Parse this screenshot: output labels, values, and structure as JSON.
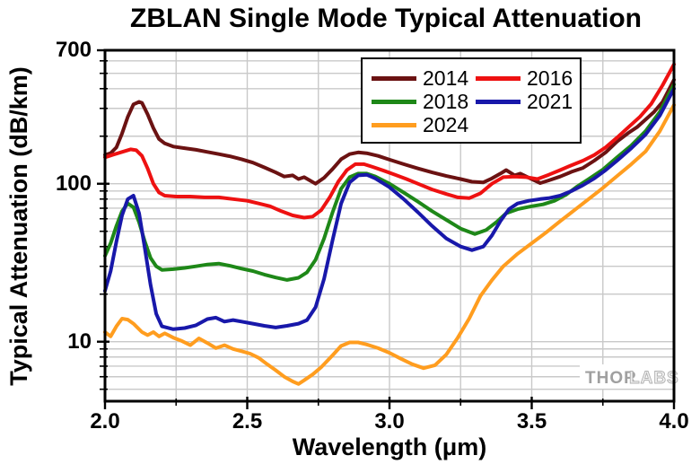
{
  "watermark": {
    "thor": "THOR",
    "labs": "LABS"
  },
  "chart_data": {
    "type": "line",
    "title": "ZBLAN Single Mode Typical Attenuation",
    "xlabel": "Wavelength (μm)",
    "ylabel": "Typical Attenuation (dB/km)",
    "grid": true,
    "grid_color": "#c9c9c9",
    "x_axis": {
      "min": 2.0,
      "max": 4.0,
      "major_ticks": [
        2.0,
        2.5,
        3.0,
        3.5,
        4.0
      ],
      "tick_labels": [
        "2.0",
        "2.5",
        "3.0",
        "3.5",
        "4.0"
      ],
      "minor_ticks": [
        2.25,
        2.75,
        3.25,
        3.75
      ],
      "grid_values": [
        2.25,
        2.5,
        2.75,
        3.0,
        3.25,
        3.5,
        3.75
      ]
    },
    "y_axis": {
      "scale": "log",
      "min": 4.2,
      "max": 700,
      "major_ticks": [
        700,
        100,
        10
      ],
      "tick_labels": [
        "700",
        "100",
        "10"
      ],
      "grid_values": [
        600,
        500,
        400,
        300,
        200,
        100,
        90,
        80,
        70,
        60,
        50,
        40,
        30,
        20,
        10,
        9,
        8,
        7,
        6,
        5
      ]
    },
    "legend": {
      "position": "top-center-inside",
      "entries": [
        "2014",
        "2016",
        "2018",
        "2021",
        "2024"
      ]
    },
    "series": [
      {
        "name": "2014",
        "color": "#6b1212",
        "points": [
          [
            2.0,
            152
          ],
          [
            2.02,
            156
          ],
          [
            2.04,
            170
          ],
          [
            2.06,
            208
          ],
          [
            2.08,
            265
          ],
          [
            2.1,
            318
          ],
          [
            2.12,
            330
          ],
          [
            2.13,
            325
          ],
          [
            2.15,
            275
          ],
          [
            2.17,
            225
          ],
          [
            2.19,
            192
          ],
          [
            2.21,
            180
          ],
          [
            2.24,
            172
          ],
          [
            2.28,
            168
          ],
          [
            2.32,
            164
          ],
          [
            2.36,
            159
          ],
          [
            2.4,
            154
          ],
          [
            2.44,
            149
          ],
          [
            2.48,
            143
          ],
          [
            2.52,
            136
          ],
          [
            2.56,
            127
          ],
          [
            2.6,
            118
          ],
          [
            2.63,
            111
          ],
          [
            2.66,
            113
          ],
          [
            2.68,
            107
          ],
          [
            2.7,
            110
          ],
          [
            2.72,
            105
          ],
          [
            2.74,
            100
          ],
          [
            2.77,
            109
          ],
          [
            2.8,
            124
          ],
          [
            2.83,
            143
          ],
          [
            2.86,
            154
          ],
          [
            2.89,
            158
          ],
          [
            2.92,
            156
          ],
          [
            2.96,
            150
          ],
          [
            3.0,
            142
          ],
          [
            3.05,
            133
          ],
          [
            3.1,
            125
          ],
          [
            3.15,
            118
          ],
          [
            3.2,
            112
          ],
          [
            3.25,
            107
          ],
          [
            3.29,
            103
          ],
          [
            3.33,
            102
          ],
          [
            3.36,
            108
          ],
          [
            3.39,
            116
          ],
          [
            3.41,
            122
          ],
          [
            3.44,
            113
          ],
          [
            3.46,
            116
          ],
          [
            3.49,
            109
          ],
          [
            3.53,
            101
          ],
          [
            3.56,
            105
          ],
          [
            3.6,
            111
          ],
          [
            3.64,
            119
          ],
          [
            3.68,
            126
          ],
          [
            3.72,
            140
          ],
          [
            3.76,
            158
          ],
          [
            3.8,
            185
          ],
          [
            3.84,
            210
          ],
          [
            3.87,
            228
          ],
          [
            3.9,
            255
          ],
          [
            3.93,
            285
          ],
          [
            3.96,
            330
          ],
          [
            4.0,
            455
          ]
        ]
      },
      {
        "name": "2016",
        "color": "#ee1111",
        "points": [
          [
            2.0,
            147
          ],
          [
            2.03,
            153
          ],
          [
            2.06,
            159
          ],
          [
            2.09,
            165
          ],
          [
            2.11,
            163
          ],
          [
            2.13,
            150
          ],
          [
            2.15,
            125
          ],
          [
            2.17,
            100
          ],
          [
            2.19,
            88
          ],
          [
            2.21,
            84
          ],
          [
            2.25,
            83
          ],
          [
            2.3,
            83
          ],
          [
            2.35,
            82
          ],
          [
            2.4,
            82
          ],
          [
            2.45,
            80
          ],
          [
            2.5,
            78
          ],
          [
            2.54,
            75
          ],
          [
            2.58,
            72
          ],
          [
            2.62,
            67
          ],
          [
            2.66,
            63
          ],
          [
            2.7,
            61
          ],
          [
            2.73,
            62
          ],
          [
            2.76,
            68
          ],
          [
            2.79,
            82
          ],
          [
            2.82,
            103
          ],
          [
            2.85,
            122
          ],
          [
            2.88,
            133
          ],
          [
            2.91,
            133
          ],
          [
            2.94,
            128
          ],
          [
            2.98,
            121
          ],
          [
            3.02,
            114
          ],
          [
            3.06,
            107
          ],
          [
            3.1,
            100
          ],
          [
            3.15,
            92
          ],
          [
            3.2,
            86
          ],
          [
            3.24,
            82
          ],
          [
            3.28,
            81
          ],
          [
            3.32,
            87
          ],
          [
            3.36,
            100
          ],
          [
            3.4,
            110
          ],
          [
            3.44,
            111
          ],
          [
            3.48,
            110
          ],
          [
            3.52,
            107
          ],
          [
            3.56,
            114
          ],
          [
            3.6,
            122
          ],
          [
            3.64,
            131
          ],
          [
            3.68,
            140
          ],
          [
            3.72,
            152
          ],
          [
            3.76,
            170
          ],
          [
            3.8,
            196
          ],
          [
            3.84,
            228
          ],
          [
            3.88,
            265
          ],
          [
            3.92,
            320
          ],
          [
            3.96,
            420
          ],
          [
            4.0,
            570
          ]
        ]
      },
      {
        "name": "2018",
        "color": "#1e8818",
        "points": [
          [
            2.0,
            35
          ],
          [
            2.02,
            42
          ],
          [
            2.04,
            54
          ],
          [
            2.06,
            67
          ],
          [
            2.08,
            75
          ],
          [
            2.1,
            71
          ],
          [
            2.12,
            57
          ],
          [
            2.14,
            43
          ],
          [
            2.16,
            34
          ],
          [
            2.18,
            30
          ],
          [
            2.2,
            28.5
          ],
          [
            2.24,
            28.8
          ],
          [
            2.28,
            29.3
          ],
          [
            2.32,
            30
          ],
          [
            2.36,
            30.8
          ],
          [
            2.4,
            31.2
          ],
          [
            2.44,
            30.2
          ],
          [
            2.48,
            29
          ],
          [
            2.52,
            28
          ],
          [
            2.56,
            26.6
          ],
          [
            2.6,
            25.5
          ],
          [
            2.64,
            24.6
          ],
          [
            2.68,
            25.4
          ],
          [
            2.71,
            27.5
          ],
          [
            2.74,
            33
          ],
          [
            2.77,
            45
          ],
          [
            2.8,
            66
          ],
          [
            2.83,
            93
          ],
          [
            2.86,
            110
          ],
          [
            2.89,
            116
          ],
          [
            2.92,
            116
          ],
          [
            2.95,
            111
          ],
          [
            3.0,
            100
          ],
          [
            3.05,
            88
          ],
          [
            3.1,
            77
          ],
          [
            3.15,
            67
          ],
          [
            3.2,
            59
          ],
          [
            3.25,
            52
          ],
          [
            3.3,
            48
          ],
          [
            3.34,
            51
          ],
          [
            3.38,
            58
          ],
          [
            3.41,
            65
          ],
          [
            3.45,
            69
          ],
          [
            3.5,
            72
          ],
          [
            3.54,
            74
          ],
          [
            3.58,
            78
          ],
          [
            3.62,
            85
          ],
          [
            3.66,
            96
          ],
          [
            3.7,
            107
          ],
          [
            3.75,
            123
          ],
          [
            3.8,
            147
          ],
          [
            3.85,
            175
          ],
          [
            3.9,
            215
          ],
          [
            3.95,
            285
          ],
          [
            4.0,
            425
          ]
        ]
      },
      {
        "name": "2021",
        "color": "#1818aa",
        "points": [
          [
            2.0,
            21
          ],
          [
            2.02,
            28
          ],
          [
            2.04,
            43
          ],
          [
            2.06,
            63
          ],
          [
            2.08,
            80
          ],
          [
            2.1,
            84
          ],
          [
            2.12,
            65
          ],
          [
            2.14,
            39
          ],
          [
            2.16,
            23
          ],
          [
            2.18,
            15
          ],
          [
            2.2,
            12.5
          ],
          [
            2.24,
            12
          ],
          [
            2.28,
            12.2
          ],
          [
            2.32,
            12.7
          ],
          [
            2.36,
            13.9
          ],
          [
            2.39,
            14.2
          ],
          [
            2.42,
            13.4
          ],
          [
            2.45,
            13.7
          ],
          [
            2.48,
            13.4
          ],
          [
            2.52,
            13
          ],
          [
            2.56,
            12.6
          ],
          [
            2.6,
            12.3
          ],
          [
            2.64,
            12.6
          ],
          [
            2.68,
            13
          ],
          [
            2.71,
            13.7
          ],
          [
            2.74,
            16.5
          ],
          [
            2.77,
            25
          ],
          [
            2.8,
            44
          ],
          [
            2.83,
            75
          ],
          [
            2.86,
            102
          ],
          [
            2.89,
            113
          ],
          [
            2.92,
            114
          ],
          [
            2.95,
            108
          ],
          [
            3.0,
            95
          ],
          [
            3.05,
            80
          ],
          [
            3.1,
            66
          ],
          [
            3.15,
            54
          ],
          [
            3.2,
            45
          ],
          [
            3.25,
            40
          ],
          [
            3.29,
            38
          ],
          [
            3.33,
            40
          ],
          [
            3.36,
            47
          ],
          [
            3.39,
            58
          ],
          [
            3.42,
            69
          ],
          [
            3.45,
            75
          ],
          [
            3.49,
            78
          ],
          [
            3.53,
            80
          ],
          [
            3.56,
            81
          ],
          [
            3.6,
            84
          ],
          [
            3.64,
            90
          ],
          [
            3.68,
            98
          ],
          [
            3.72,
            108
          ],
          [
            3.76,
            122
          ],
          [
            3.8,
            140
          ],
          [
            3.85,
            168
          ],
          [
            3.9,
            205
          ],
          [
            3.95,
            270
          ],
          [
            4.0,
            400
          ]
        ]
      },
      {
        "name": "2024",
        "color": "#ff9d1f",
        "points": [
          [
            2.0,
            11.5
          ],
          [
            2.02,
            10.8
          ],
          [
            2.04,
            12.5
          ],
          [
            2.06,
            14
          ],
          [
            2.08,
            13.8
          ],
          [
            2.1,
            13
          ],
          [
            2.13,
            11.5
          ],
          [
            2.15,
            11
          ],
          [
            2.17,
            11.5
          ],
          [
            2.19,
            10.8
          ],
          [
            2.21,
            11.3
          ],
          [
            2.24,
            10.6
          ],
          [
            2.27,
            10.1
          ],
          [
            2.3,
            9.5
          ],
          [
            2.33,
            10.5
          ],
          [
            2.36,
            9.8
          ],
          [
            2.39,
            9.1
          ],
          [
            2.42,
            9.5
          ],
          [
            2.45,
            9
          ],
          [
            2.48,
            8.7
          ],
          [
            2.51,
            8.4
          ],
          [
            2.54,
            7.9
          ],
          [
            2.57,
            7.2
          ],
          [
            2.6,
            6.6
          ],
          [
            2.63,
            6
          ],
          [
            2.66,
            5.6
          ],
          [
            2.68,
            5.4
          ],
          [
            2.7,
            5.7
          ],
          [
            2.73,
            6.2
          ],
          [
            2.76,
            6.9
          ],
          [
            2.8,
            8.2
          ],
          [
            2.83,
            9.4
          ],
          [
            2.86,
            9.9
          ],
          [
            2.89,
            9.9
          ],
          [
            2.92,
            9.6
          ],
          [
            2.96,
            9.1
          ],
          [
            3.0,
            8.5
          ],
          [
            3.04,
            7.8
          ],
          [
            3.08,
            7.2
          ],
          [
            3.12,
            6.8
          ],
          [
            3.16,
            7.1
          ],
          [
            3.2,
            8.3
          ],
          [
            3.24,
            10.6
          ],
          [
            3.28,
            14
          ],
          [
            3.32,
            19.5
          ],
          [
            3.36,
            24.5
          ],
          [
            3.4,
            30
          ],
          [
            3.45,
            36
          ],
          [
            3.5,
            42
          ],
          [
            3.55,
            49
          ],
          [
            3.6,
            58
          ],
          [
            3.65,
            68
          ],
          [
            3.7,
            80
          ],
          [
            3.75,
            94
          ],
          [
            3.8,
            112
          ],
          [
            3.85,
            133
          ],
          [
            3.9,
            160
          ],
          [
            3.95,
            215
          ],
          [
            4.0,
            315
          ]
        ]
      }
    ]
  }
}
